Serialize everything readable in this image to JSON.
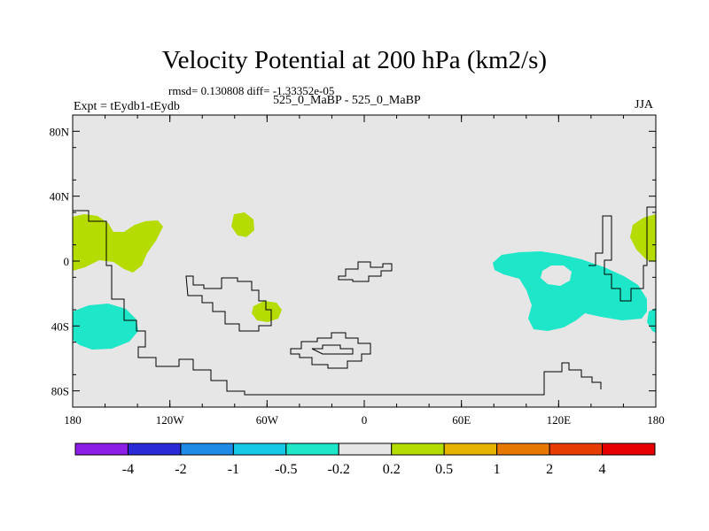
{
  "header": {
    "title": "Velocity Potential at 200 hPa (km2/s)",
    "stats": "rmsd= 0.130808 diff= -1.33352e-05",
    "expt": "Expt = tEydb1-tEydb",
    "case": "525_0_MaBP - 525_0_MaBP",
    "season": "JJA"
  },
  "map": {
    "projection": "cylindrical equidistant",
    "lon_range": [
      -180,
      180
    ],
    "lat_range": [
      -90,
      90
    ],
    "lat_ticks": [
      {
        "value": 80,
        "label": "80N"
      },
      {
        "value": 40,
        "label": "40N"
      },
      {
        "value": 0,
        "label": "0"
      },
      {
        "value": -40,
        "label": "40S"
      },
      {
        "value": -80,
        "label": "80S"
      }
    ],
    "lon_ticks": [
      {
        "value": -180,
        "label": "180"
      },
      {
        "value": -120,
        "label": "120W"
      },
      {
        "value": -60,
        "label": "60W"
      },
      {
        "value": 0,
        "label": "0"
      },
      {
        "value": 60,
        "label": "60E"
      },
      {
        "value": 120,
        "label": "120E"
      },
      {
        "value": 180,
        "label": "180"
      }
    ],
    "background_color": "#e6e6e6"
  },
  "colorbar": {
    "colors": [
      "#8c1ee6",
      "#2a2ad6",
      "#1e8ce6",
      "#14c8e6",
      "#1ee6c8",
      "#e6e6e6",
      "#b4dc00",
      "#e6b400",
      "#e67800",
      "#e63c00",
      "#e60000"
    ],
    "labels": [
      "-4",
      "-2",
      "-1",
      "-0.5",
      "-0.2",
      "0.2",
      "0.5",
      "1",
      "2",
      "4"
    ]
  }
}
